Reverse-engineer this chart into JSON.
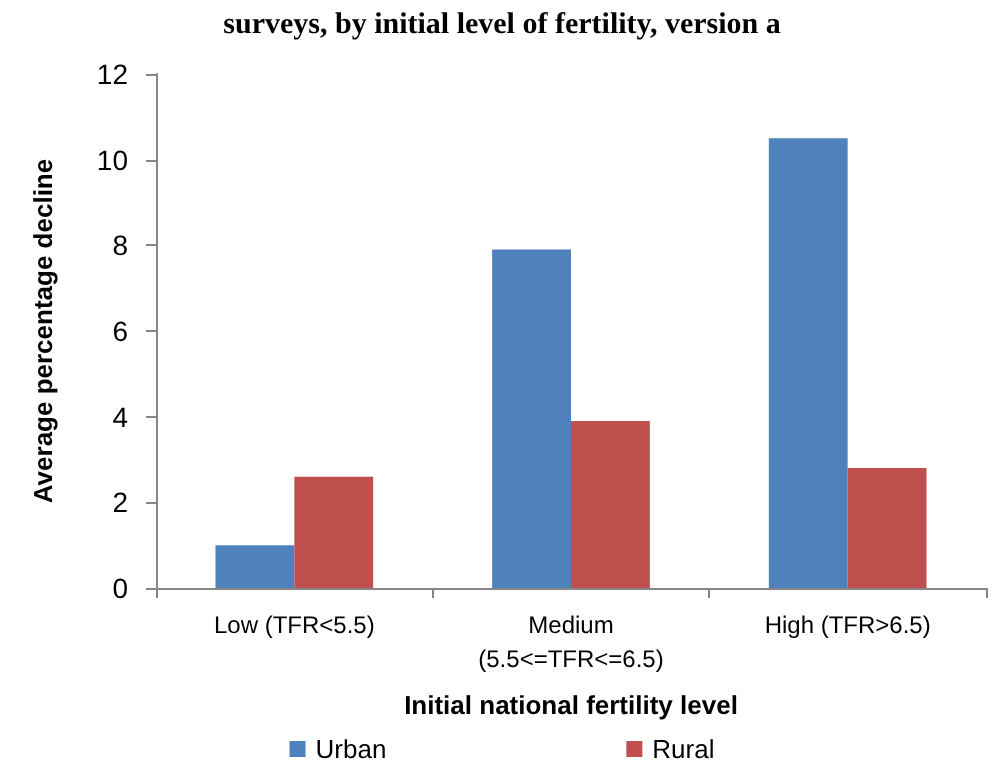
{
  "chart_data": {
    "type": "bar",
    "title": "surveys, by initial level of fertility, version a",
    "xlabel": "Initial national fertility level",
    "ylabel": "Average percentage decline",
    "categories": [
      "Low (TFR<5.5)",
      "Medium\n(5.5<=TFR<=6.5)",
      "High (TFR>6.5)"
    ],
    "series": [
      {
        "name": "Urban",
        "color": "#4f81bd",
        "values": [
          1.0,
          7.9,
          10.5
        ]
      },
      {
        "name": "Rural",
        "color": "#c0504d",
        "values": [
          2.6,
          3.9,
          2.8
        ]
      }
    ],
    "ylim": [
      0,
      12
    ],
    "yticks": [
      0,
      2,
      4,
      6,
      8,
      10,
      12
    ],
    "grid": false,
    "legend": "bottom"
  }
}
